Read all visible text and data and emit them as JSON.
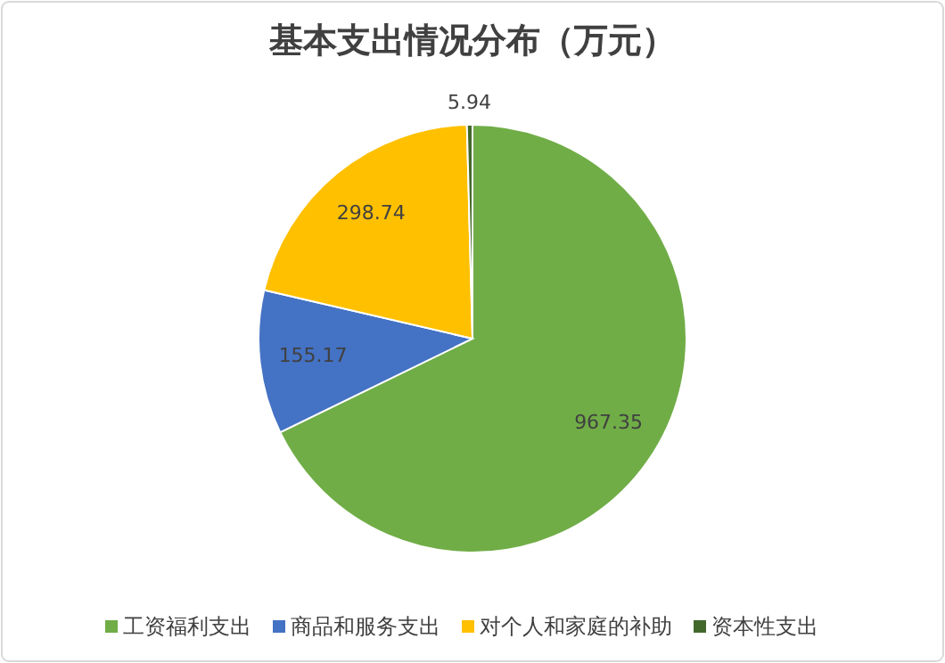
{
  "chart_data": {
    "type": "pie",
    "title": "基本支出情况分布（万元）",
    "categories": [
      "工资福利支出",
      "商品和服务支出",
      "对个人和家庭的补助",
      "资本性支出"
    ],
    "values": [
      967.35,
      155.17,
      298.74,
      5.94
    ],
    "colors": [
      "#70ad47",
      "#4472c4",
      "#ffc000",
      "#43682b"
    ],
    "data_labels": true,
    "legend": "bottom"
  }
}
